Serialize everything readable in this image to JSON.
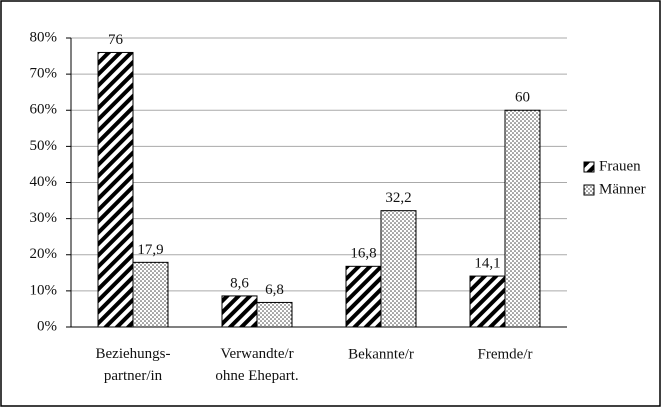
{
  "chart_data": {
    "type": "bar",
    "categories": [
      "Beziehungs-\npartner/in",
      "Verwandte/r\nohne Ehepart.",
      "Bekannte/r",
      "Fremde/r"
    ],
    "series": [
      {
        "name": "Frauen",
        "color": "#000000",
        "values": [
          76,
          8.6,
          16.8,
          14.1
        ],
        "value_labels": [
          "76",
          "8,6",
          "16,8",
          "14,1"
        ]
      },
      {
        "name": "Männer",
        "color": "#555555",
        "values": [
          17.9,
          6.8,
          32.2,
          60
        ],
        "value_labels": [
          "17,9",
          "6,8",
          "32,2",
          "60"
        ]
      }
    ],
    "ylim": [
      0,
      80
    ],
    "yticks": [
      {
        "value": 0,
        "label": "0%"
      },
      {
        "value": 10,
        "label": "10%"
      },
      {
        "value": 20,
        "label": "20%"
      },
      {
        "value": 30,
        "label": "30%"
      },
      {
        "value": 40,
        "label": "40%"
      },
      {
        "value": 50,
        "label": "50%"
      },
      {
        "value": 60,
        "label": "60%"
      },
      {
        "value": 70,
        "label": "70%"
      },
      {
        "value": 80,
        "label": "80%"
      }
    ],
    "grid": true,
    "legend": "right"
  }
}
